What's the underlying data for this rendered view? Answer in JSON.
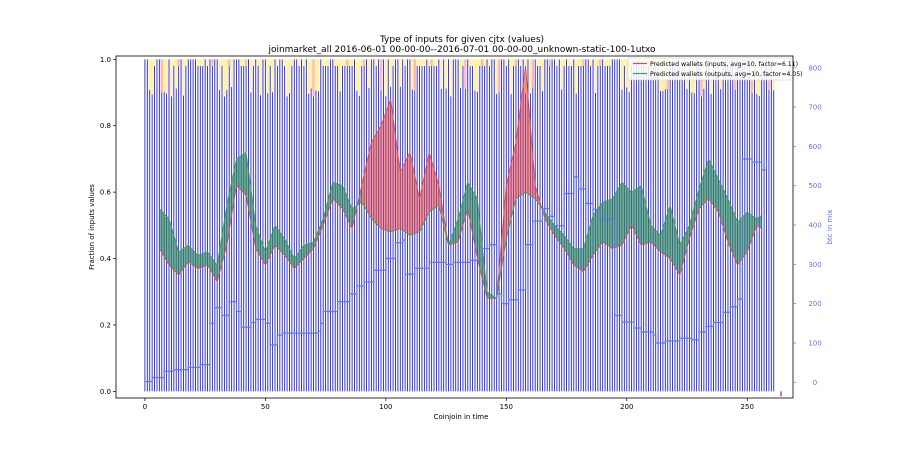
{
  "chart_data": {
    "type": "line",
    "title": "Type of inputs for given cjtx (values)",
    "subtitle": "joinmarket_all 2016-06-01 00-00-00--2016-07-01 00-00-00_unknown-static-100-1utxo",
    "xlabel": "Coinjoin in time",
    "ylabel": "Fraction of inputs values",
    "y2label": "btc in mix",
    "xlim": [
      -12,
      269
    ],
    "ylim": [
      -0.02,
      1.01
    ],
    "y2lim": [
      -40,
      830
    ],
    "xticks": [
      "0",
      "50",
      "100",
      "150",
      "200",
      "250"
    ],
    "xtick_values": [
      0,
      50,
      100,
      150,
      200,
      250
    ],
    "yticks": [
      "0.0",
      "0.2",
      "0.4",
      "0.6",
      "0.8",
      "1.0"
    ],
    "ytick_values": [
      0.0,
      0.2,
      0.4,
      0.6,
      0.8,
      1.0
    ],
    "y2ticks": [
      "0",
      "100",
      "200",
      "300",
      "400",
      "500",
      "600",
      "700",
      "800"
    ],
    "y2tick_values": [
      0,
      100,
      200,
      300,
      400,
      500,
      600,
      700,
      800
    ],
    "grid": false,
    "legend_position": "top-right",
    "background_bars": {
      "count": 262,
      "colors": [
        "#2222dd",
        "#fff2a8",
        "#ffb8b8"
      ]
    },
    "series": [
      {
        "name": "Predicted wallets (inputs, avg=10, factor=6.11)",
        "axis": "left",
        "color": "#e8463c",
        "x": [
          6,
          10,
          14,
          18,
          22,
          26,
          30,
          34,
          38,
          42,
          46,
          50,
          54,
          58,
          62,
          66,
          70,
          74,
          78,
          82,
          86,
          90,
          94,
          98,
          102,
          106,
          110,
          114,
          118,
          122,
          126,
          130,
          134,
          138,
          142,
          146,
          150,
          154,
          158,
          162,
          166,
          170,
          174,
          178,
          182,
          186,
          190,
          194,
          198,
          202,
          206,
          210,
          214,
          218,
          222,
          226,
          230,
          234,
          238,
          242,
          246,
          250,
          254,
          256
        ],
        "values": [
          0.43,
          0.38,
          0.35,
          0.39,
          0.37,
          0.38,
          0.33,
          0.44,
          0.62,
          0.59,
          0.43,
          0.38,
          0.44,
          0.41,
          0.37,
          0.4,
          0.43,
          0.5,
          0.58,
          0.55,
          0.49,
          0.62,
          0.75,
          0.8,
          0.88,
          0.66,
          0.72,
          0.58,
          0.72,
          0.62,
          0.44,
          0.45,
          0.55,
          0.4,
          0.28,
          0.28,
          0.62,
          0.75,
          0.98,
          0.62,
          0.52,
          0.47,
          0.43,
          0.38,
          0.36,
          0.41,
          0.45,
          0.43,
          0.44,
          0.5,
          0.44,
          0.45,
          0.42,
          0.4,
          0.35,
          0.46,
          0.55,
          0.58,
          0.54,
          0.45,
          0.38,
          0.42,
          0.5,
          0.49
        ]
      },
      {
        "name": "Predicted wallets (outputs, avg=10, factor=4.05)",
        "axis": "left",
        "color": "#3aa23a",
        "x": [
          6,
          10,
          14,
          18,
          22,
          26,
          30,
          34,
          38,
          42,
          46,
          50,
          54,
          58,
          62,
          66,
          70,
          74,
          78,
          82,
          86,
          90,
          94,
          98,
          102,
          106,
          110,
          114,
          118,
          122,
          126,
          130,
          134,
          138,
          142,
          146,
          150,
          154,
          158,
          162,
          166,
          170,
          174,
          178,
          182,
          186,
          190,
          194,
          198,
          202,
          206,
          210,
          214,
          218,
          222,
          226,
          230,
          234,
          238,
          242,
          246,
          250,
          254,
          256
        ],
        "values": [
          0.55,
          0.52,
          0.42,
          0.44,
          0.41,
          0.42,
          0.38,
          0.56,
          0.7,
          0.72,
          0.5,
          0.42,
          0.5,
          0.46,
          0.4,
          0.44,
          0.45,
          0.52,
          0.63,
          0.62,
          0.55,
          0.57,
          0.52,
          0.49,
          0.48,
          0.49,
          0.47,
          0.48,
          0.54,
          0.56,
          0.44,
          0.52,
          0.63,
          0.58,
          0.3,
          0.28,
          0.46,
          0.58,
          0.6,
          0.58,
          0.54,
          0.5,
          0.47,
          0.43,
          0.43,
          0.53,
          0.57,
          0.58,
          0.63,
          0.6,
          0.62,
          0.5,
          0.47,
          0.56,
          0.44,
          0.5,
          0.61,
          0.7,
          0.64,
          0.58,
          0.51,
          0.54,
          0.52,
          0.53
        ]
      },
      {
        "axis": "right",
        "color": "#5b73e8",
        "step": true,
        "x": [
          0,
          3,
          8,
          12,
          18,
          23,
          27,
          29,
          32,
          35,
          38,
          40,
          44,
          46,
          50,
          52,
          55,
          57,
          72,
          73,
          74,
          80,
          85,
          88,
          91,
          95,
          100,
          104,
          107,
          108,
          112,
          118,
          125,
          128,
          135,
          140,
          143,
          146,
          148,
          151,
          155,
          158,
          161,
          165,
          168,
          170,
          174,
          178,
          180,
          183,
          186,
          189,
          195,
          198,
          203,
          206,
          211,
          212,
          216,
          222,
          227,
          230,
          233,
          236,
          240,
          243,
          246,
          248,
          252,
          256,
          258
        ],
        "values": [
          2,
          12,
          28,
          32,
          38,
          45,
          150,
          190,
          170,
          205,
          180,
          140,
          152,
          160,
          150,
          95,
          120,
          125,
          130,
          150,
          180,
          205,
          225,
          245,
          255,
          285,
          315,
          355,
          362,
          275,
          290,
          305,
          300,
          305,
          310,
          340,
          350,
          225,
          200,
          210,
          235,
          350,
          410,
          442,
          422,
          398,
          480,
          522,
          492,
          455,
          440,
          415,
          170,
          153,
          138,
          128,
          120,
          100,
          105,
          112,
          108,
          128,
          142,
          152,
          178,
          192,
          212,
          568,
          560,
          540,
          562
        ]
      }
    ]
  }
}
